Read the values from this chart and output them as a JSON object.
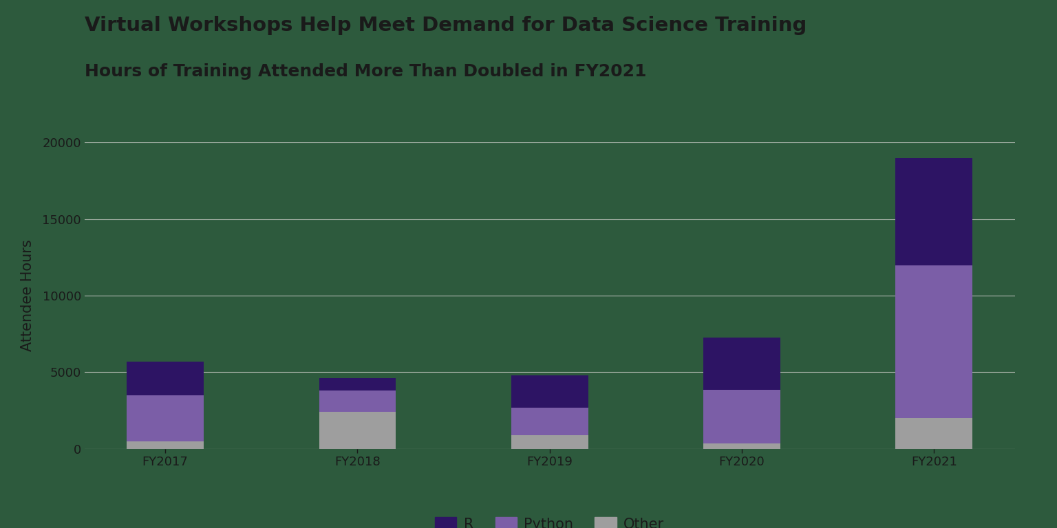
{
  "categories": [
    "FY2017",
    "FY2018",
    "FY2019",
    "FY2020",
    "FY2021"
  ],
  "other": [
    500,
    2400,
    900,
    350,
    2000
  ],
  "python": [
    3000,
    1400,
    1800,
    3500,
    10000
  ],
  "r": [
    2200,
    800,
    2100,
    3400,
    7000
  ],
  "color_r": "#2d1464",
  "color_python": "#7b5ea7",
  "color_other": "#9e9e9e",
  "title_line1": "Virtual Workshops Help Meet Demand for Data Science Training",
  "title_line2": "Hours of Training Attended More Than Doubled in FY2021",
  "ylabel": "Attendee Hours",
  "ylim": [
    0,
    20000
  ],
  "yticks": [
    0,
    5000,
    10000,
    15000,
    20000
  ],
  "background_color": "#2d5a3d",
  "text_color": "#1a1a1a",
  "grid_color": "#b0b8b0",
  "title_fontsize": 21,
  "subtitle_fontsize": 18,
  "axis_label_fontsize": 15,
  "tick_fontsize": 13,
  "legend_fontsize": 15,
  "bar_width": 0.4
}
